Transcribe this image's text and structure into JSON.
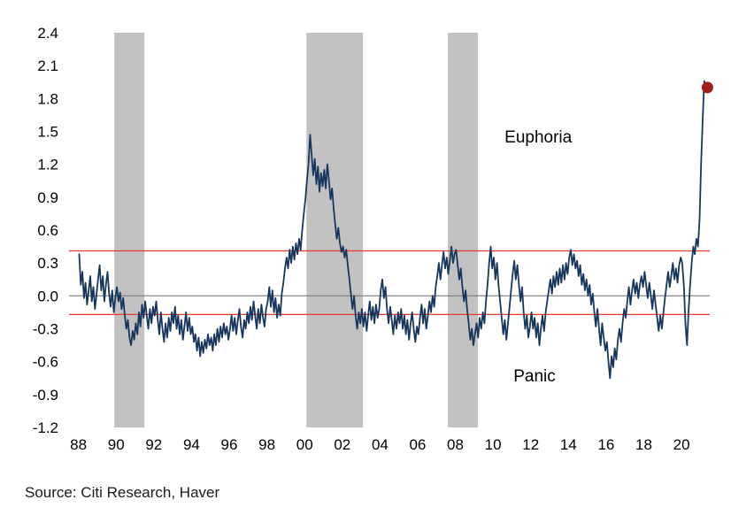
{
  "source_note": "Source: Citi Research, Haver",
  "colors": {
    "line": "#17365d",
    "recession_band": "#c2c2c2",
    "threshold_line": "#e8372d",
    "zero_line": "#6e6e6e",
    "end_dot": "#a31d1a",
    "text": "#000000"
  },
  "chart_data": {
    "type": "line",
    "title": "",
    "xlabel": "",
    "ylabel": "",
    "x_tick_years": [
      1988,
      1990,
      1992,
      1994,
      1996,
      1998,
      2000,
      2002,
      2004,
      2006,
      2008,
      2010,
      2012,
      2014,
      2016,
      2018,
      2020
    ],
    "x_tick_labels": [
      "88",
      "90",
      "92",
      "94",
      "96",
      "98",
      "00",
      "02",
      "04",
      "06",
      "08",
      "10",
      "12",
      "14",
      "16",
      "18",
      "20"
    ],
    "y_ticks": [
      -1.2,
      -0.9,
      -0.6,
      -0.3,
      0.0,
      0.3,
      0.6,
      0.9,
      1.2,
      1.5,
      1.8,
      2.1,
      2.4
    ],
    "xlim": [
      1987.5,
      2021.5
    ],
    "ylim": [
      -1.2,
      2.4
    ],
    "grid": false,
    "legend": false,
    "annotations": [
      {
        "text": "Euphoria",
        "x": 2012.4,
        "y": 1.4
      },
      {
        "text": "Panic",
        "x": 2012.2,
        "y": -0.78
      }
    ],
    "threshold_lines": [
      {
        "label": "euphoria-threshold",
        "y": 0.41
      },
      {
        "label": "panic-threshold",
        "y": -0.17
      }
    ],
    "zero_line_y": 0.0,
    "recession_bands": [
      {
        "start": 1989.9,
        "end": 1991.5
      },
      {
        "start": 2000.1,
        "end": 2003.1
      },
      {
        "start": 2007.6,
        "end": 2009.2
      }
    ],
    "latest_point": {
      "x": 2021.38,
      "y": 1.9
    },
    "series": {
      "monthly_values_by_year": {
        "1988": [
          0.38,
          0.1,
          0.22,
          -0.02,
          0.12,
          -0.08,
          0.05,
          0.18,
          -0.05,
          0.08,
          -0.12,
          0.02
        ],
        "1989": [
          0.15,
          0.28,
          0.05,
          0.18,
          -0.05,
          0.1,
          0.22,
          0.02,
          -0.1,
          0.05,
          -0.15,
          -0.02
        ],
        "1990": [
          0.08,
          -0.05,
          0.03,
          -0.12,
          -0.02,
          -0.18,
          -0.3,
          -0.22,
          -0.38,
          -0.45,
          -0.32,
          -0.4
        ],
        "1991": [
          -0.25,
          -0.35,
          -0.15,
          -0.28,
          -0.08,
          -0.2,
          -0.05,
          -0.18,
          -0.3,
          -0.12,
          -0.25,
          -0.1
        ],
        "1992": [
          -0.18,
          -0.05,
          -0.22,
          -0.35,
          -0.15,
          -0.3,
          -0.42,
          -0.25,
          -0.38,
          -0.2,
          -0.32,
          -0.15
        ],
        "1993": [
          -0.25,
          -0.1,
          -0.3,
          -0.18,
          -0.35,
          -0.22,
          -0.4,
          -0.28,
          -0.15,
          -0.32,
          -0.2,
          -0.35
        ],
        "1994": [
          -0.28,
          -0.42,
          -0.35,
          -0.5,
          -0.38,
          -0.55,
          -0.42,
          -0.52,
          -0.4,
          -0.48,
          -0.35,
          -0.45
        ],
        "1995": [
          -0.38,
          -0.5,
          -0.35,
          -0.45,
          -0.3,
          -0.42,
          -0.28,
          -0.38,
          -0.25,
          -0.35,
          -0.28,
          -0.4
        ],
        "1996": [
          -0.3,
          -0.18,
          -0.32,
          -0.2,
          -0.35,
          -0.22,
          -0.12,
          -0.28,
          -0.38,
          -0.22,
          -0.3,
          -0.15
        ],
        "1997": [
          -0.25,
          -0.1,
          -0.22,
          -0.05,
          -0.18,
          -0.3,
          -0.12,
          -0.25,
          -0.08,
          -0.2,
          -0.28,
          -0.12
        ],
        "1998": [
          -0.05,
          0.08,
          -0.1,
          0.05,
          -0.15,
          -0.02,
          -0.2,
          -0.08,
          -0.18,
          0.02,
          0.12,
          0.25
        ],
        "1999": [
          0.35,
          0.25,
          0.42,
          0.3,
          0.45,
          0.33,
          0.48,
          0.38,
          0.52,
          0.42,
          0.6,
          0.75
        ],
        "2000": [
          0.88,
          1.05,
          1.2,
          1.47,
          1.28,
          1.1,
          1.25,
          1.02,
          1.18,
          0.95,
          1.12,
          1.0
        ],
        "2001": [
          1.15,
          0.98,
          1.2,
          1.05,
          0.88,
          0.98,
          0.8,
          0.65,
          0.52,
          0.62,
          0.48,
          0.4
        ],
        "2002": [
          0.45,
          0.35,
          0.42,
          0.28,
          0.15,
          0.02,
          -0.12,
          0.0,
          -0.18,
          -0.3,
          -0.15,
          -0.25
        ],
        "2003": [
          -0.12,
          -0.28,
          -0.15,
          -0.32,
          -0.18,
          -0.05,
          -0.22,
          -0.1,
          -0.25,
          -0.08,
          -0.2,
          -0.12
        ],
        "2004": [
          0.05,
          0.15,
          -0.02,
          0.08,
          -0.12,
          -0.25,
          -0.1,
          -0.22,
          -0.35,
          -0.18,
          -0.3,
          -0.15
        ],
        "2005": [
          -0.25,
          -0.12,
          -0.3,
          -0.18,
          -0.35,
          -0.22,
          -0.4,
          -0.25,
          -0.15,
          -0.3,
          -0.42,
          -0.28
        ],
        "2006": [
          -0.35,
          -0.2,
          -0.08,
          -0.25,
          -0.12,
          -0.3,
          -0.18,
          -0.05,
          -0.15,
          0.0,
          -0.1,
          0.08
        ],
        "2007": [
          0.18,
          0.3,
          0.15,
          0.28,
          0.4,
          0.25,
          0.35,
          0.2,
          0.32,
          0.45,
          0.3,
          0.38
        ],
        "2008": [
          0.42,
          0.28,
          0.15,
          0.25,
          0.08,
          -0.05,
          0.05,
          -0.12,
          -0.25,
          -0.4,
          -0.3,
          -0.45
        ],
        "2009": [
          -0.35,
          -0.25,
          -0.38,
          -0.2,
          -0.3,
          -0.15,
          -0.25,
          -0.05,
          0.1,
          0.3,
          0.45,
          0.25
        ],
        "2010": [
          0.35,
          0.15,
          0.3,
          0.1,
          -0.05,
          -0.2,
          -0.35,
          -0.22,
          -0.4,
          -0.25,
          -0.1,
          0.05
        ],
        "2011": [
          0.2,
          0.32,
          0.15,
          0.28,
          0.1,
          -0.05,
          0.08,
          -0.15,
          -0.3,
          -0.18,
          -0.38,
          -0.28
        ],
        "2012": [
          -0.15,
          -0.3,
          -0.2,
          -0.38,
          -0.25,
          -0.45,
          -0.3,
          -0.18,
          -0.32,
          -0.15,
          -0.05,
          0.05
        ],
        "2013": [
          0.15,
          0.02,
          0.18,
          0.08,
          0.22,
          0.1,
          0.25,
          0.12,
          0.28,
          0.15,
          0.3,
          0.2
        ],
        "2014": [
          0.35,
          0.42,
          0.28,
          0.38,
          0.25,
          0.32,
          0.18,
          0.28,
          0.1,
          0.2,
          0.05,
          0.15
        ],
        "2015": [
          0.0,
          0.1,
          -0.08,
          0.02,
          -0.15,
          -0.28,
          -0.12,
          -0.3,
          -0.45,
          -0.25,
          -0.38,
          -0.5
        ],
        "2016": [
          -0.42,
          -0.6,
          -0.75,
          -0.55,
          -0.65,
          -0.48,
          -0.58,
          -0.4,
          -0.3,
          -0.42,
          -0.25,
          -0.12
        ],
        "2017": [
          -0.2,
          -0.05,
          0.08,
          -0.08,
          0.05,
          0.15,
          0.02,
          0.12,
          -0.02,
          0.1,
          0.18,
          0.08
        ],
        "2018": [
          0.22,
          0.1,
          -0.02,
          0.12,
          0.0,
          -0.12,
          0.05,
          -0.08,
          -0.2,
          -0.32,
          -0.18,
          -0.3
        ],
        "2019": [
          -0.15,
          -0.02,
          0.1,
          0.22,
          0.08,
          0.18,
          0.3,
          0.15,
          0.25,
          0.12,
          0.28,
          0.35
        ],
        "2020": [
          0.3,
          0.1,
          -0.25,
          -0.45,
          -0.15,
          0.1,
          0.3,
          0.45,
          0.38,
          0.52,
          0.45,
          0.7
        ],
        "2021": [
          1.2,
          1.6,
          1.96,
          1.88,
          1.9
        ]
      }
    }
  }
}
